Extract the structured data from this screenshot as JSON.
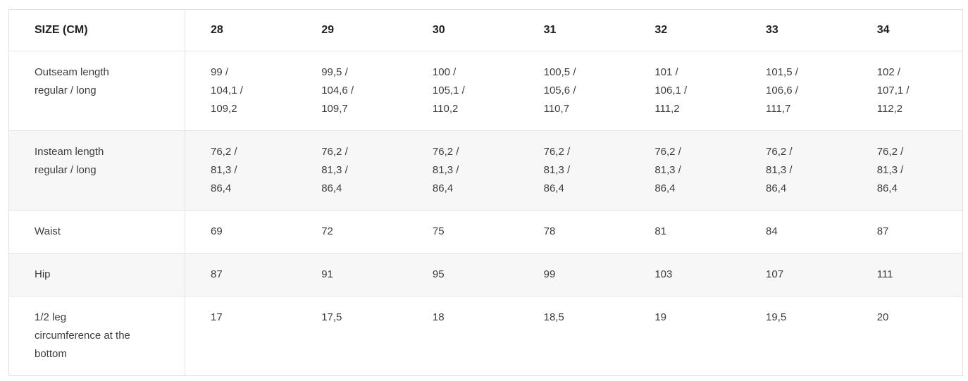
{
  "table": {
    "corner_header": "SIZE (CM)",
    "columns": [
      "28",
      "29",
      "30",
      "31",
      "32",
      "33",
      "34"
    ],
    "rows": [
      {
        "label": "Outseam length\nregular / long",
        "values": [
          "99 /\n104,1 /\n109,2",
          "99,5 /\n104,6 /\n109,7",
          "100 /\n105,1 /\n110,2",
          "100,5 /\n105,6 /\n110,7",
          "101 /\n106,1 /\n111,2",
          "101,5 /\n106,6 /\n111,7",
          "102 /\n107,1 /\n112,2"
        ]
      },
      {
        "label": "Insteam length\nregular / long",
        "values": [
          "76,2 /\n81,3 /\n86,4",
          "76,2 /\n81,3 /\n86,4",
          "76,2 /\n81,3 /\n86,4",
          "76,2 /\n81,3 /\n86,4",
          "76,2 /\n81,3 /\n86,4",
          "76,2 /\n81,3 /\n86,4",
          "76,2 /\n81,3 /\n86,4"
        ]
      },
      {
        "label": "Waist",
        "values": [
          "69",
          "72",
          "75",
          "78",
          "81",
          "84",
          "87"
        ]
      },
      {
        "label": "Hip",
        "values": [
          "87",
          "91",
          "95",
          "99",
          "103",
          "107",
          "111"
        ]
      },
      {
        "label": "1/2 leg\ncircumference at the\nbottom",
        "values": [
          "17",
          "17,5",
          "18",
          "18,5",
          "19",
          "19,5",
          "20"
        ]
      }
    ]
  },
  "colors": {
    "border": "#e0e0e0",
    "row_stripe": "#f7f7f7",
    "body_text": "#3d3d3d",
    "header_text": "#212121",
    "background": "#ffffff"
  }
}
